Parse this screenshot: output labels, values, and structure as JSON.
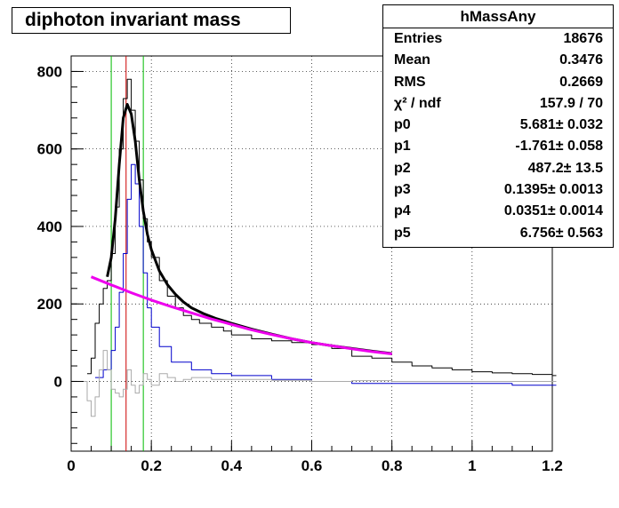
{
  "title": "diphoton invariant mass",
  "stats": {
    "name": "hMassAny",
    "rows": [
      {
        "label": "Entries",
        "value": "18676"
      },
      {
        "label": "Mean",
        "value": "0.3476"
      },
      {
        "label": "RMS",
        "value": "0.2669"
      },
      {
        "label": "χ² / ndf",
        "value": "157.9 / 70"
      },
      {
        "label": "p0",
        "value": "5.681± 0.032"
      },
      {
        "label": "p1",
        "value": "-1.761± 0.058"
      },
      {
        "label": "p2",
        "value": "487.2± 13.5"
      },
      {
        "label": "p3",
        "value": "0.1395± 0.0013"
      },
      {
        "label": "p4",
        "value": "0.0351± 0.0014"
      },
      {
        "label": "p5",
        "value": "6.756± 0.563"
      }
    ]
  },
  "chart_data": {
    "type": "line",
    "xlim": [
      0,
      1.2
    ],
    "ylim": [
      -180,
      840
    ],
    "grid": true,
    "xticks": [
      "0",
      "0.2",
      "0.4",
      "0.6",
      "0.8",
      "1",
      "1.2"
    ],
    "yticks": [
      "0",
      "200",
      "400",
      "600",
      "800"
    ],
    "colors": {
      "total": "#000000",
      "blue": "#0000cc",
      "gray": "#aaaaaa",
      "fit": "#000000",
      "bkg": "#ee00ee",
      "red": "#cc0000",
      "green": "#00bb00"
    },
    "series": [
      {
        "key": "total",
        "x": [
          0.04,
          0.05,
          0.06,
          0.07,
          0.08,
          0.09,
          0.1,
          0.11,
          0.12,
          0.13,
          0.14,
          0.15,
          0.16,
          0.17,
          0.18,
          0.19,
          0.2,
          0.22,
          0.24,
          0.26,
          0.28,
          0.3,
          0.32,
          0.35,
          0.38,
          0.4,
          0.45,
          0.5,
          0.55,
          0.6,
          0.65,
          0.7,
          0.75,
          0.8,
          0.85,
          0.9,
          0.95,
          1.0,
          1.05,
          1.1,
          1.15,
          1.2
        ],
        "y": [
          20,
          60,
          150,
          200,
          240,
          260,
          330,
          450,
          600,
          730,
          780,
          700,
          620,
          520,
          420,
          360,
          320,
          260,
          220,
          190,
          170,
          160,
          150,
          140,
          130,
          120,
          110,
          105,
          100,
          95,
          85,
          65,
          60,
          50,
          40,
          35,
          30,
          25,
          22,
          20,
          18,
          15
        ]
      },
      {
        "key": "blue",
        "x": [
          0.06,
          0.08,
          0.1,
          0.11,
          0.12,
          0.13,
          0.14,
          0.15,
          0.16,
          0.17,
          0.18,
          0.19,
          0.2,
          0.22,
          0.25,
          0.3,
          0.35,
          0.4,
          0.5,
          0.6,
          0.7,
          0.8,
          0.9,
          1.0,
          1.1,
          1.2
        ],
        "y": [
          10,
          30,
          80,
          140,
          230,
          330,
          470,
          560,
          510,
          400,
          280,
          190,
          140,
          90,
          50,
          30,
          20,
          15,
          5,
          0,
          -5,
          -5,
          -5,
          -5,
          -10,
          -10
        ]
      },
      {
        "key": "gray",
        "x": [
          0.03,
          0.04,
          0.05,
          0.06,
          0.07,
          0.08,
          0.09,
          0.1,
          0.11,
          0.12,
          0.13,
          0.14,
          0.15,
          0.16,
          0.17,
          0.18,
          0.19,
          0.2,
          0.22,
          0.24,
          0.26,
          0.28,
          0.3,
          0.35,
          0.4,
          0.5,
          0.6,
          0.7,
          0.8,
          1.2
        ],
        "y": [
          0,
          -50,
          -90,
          -40,
          30,
          80,
          30,
          -20,
          -30,
          -40,
          -20,
          30,
          -10,
          -30,
          -10,
          20,
          5,
          -10,
          20,
          10,
          0,
          5,
          10,
          5,
          5,
          3,
          0,
          2,
          0,
          0
        ]
      },
      {
        "key": "fit",
        "x": [
          0.09,
          0.1,
          0.11,
          0.12,
          0.13,
          0.14,
          0.15,
          0.16,
          0.17,
          0.18,
          0.19,
          0.2,
          0.22,
          0.24,
          0.26,
          0.28,
          0.3,
          0.33,
          0.36,
          0.4,
          0.45,
          0.5,
          0.55,
          0.6,
          0.65,
          0.7,
          0.75,
          0.8
        ],
        "y": [
          270,
          320,
          420,
          560,
          680,
          715,
          690,
          620,
          520,
          440,
          380,
          340,
          285,
          250,
          225,
          205,
          190,
          175,
          163,
          150,
          135,
          122,
          110,
          100,
          92,
          85,
          78,
          72
        ]
      },
      {
        "key": "bkg",
        "x": [
          0.05,
          0.1,
          0.15,
          0.2,
          0.25,
          0.3,
          0.35,
          0.4,
          0.45,
          0.5,
          0.55,
          0.6,
          0.65,
          0.7,
          0.75,
          0.8
        ],
        "y": [
          270,
          249,
          229,
          210,
          193,
          177,
          161,
          147,
          133,
          121,
          110,
          100,
          92,
          84,
          77,
          71
        ]
      }
    ],
    "vlines": [
      {
        "key": "green",
        "x": 0.1
      },
      {
        "key": "red",
        "x": 0.137
      },
      {
        "key": "green",
        "x": 0.18
      }
    ]
  }
}
